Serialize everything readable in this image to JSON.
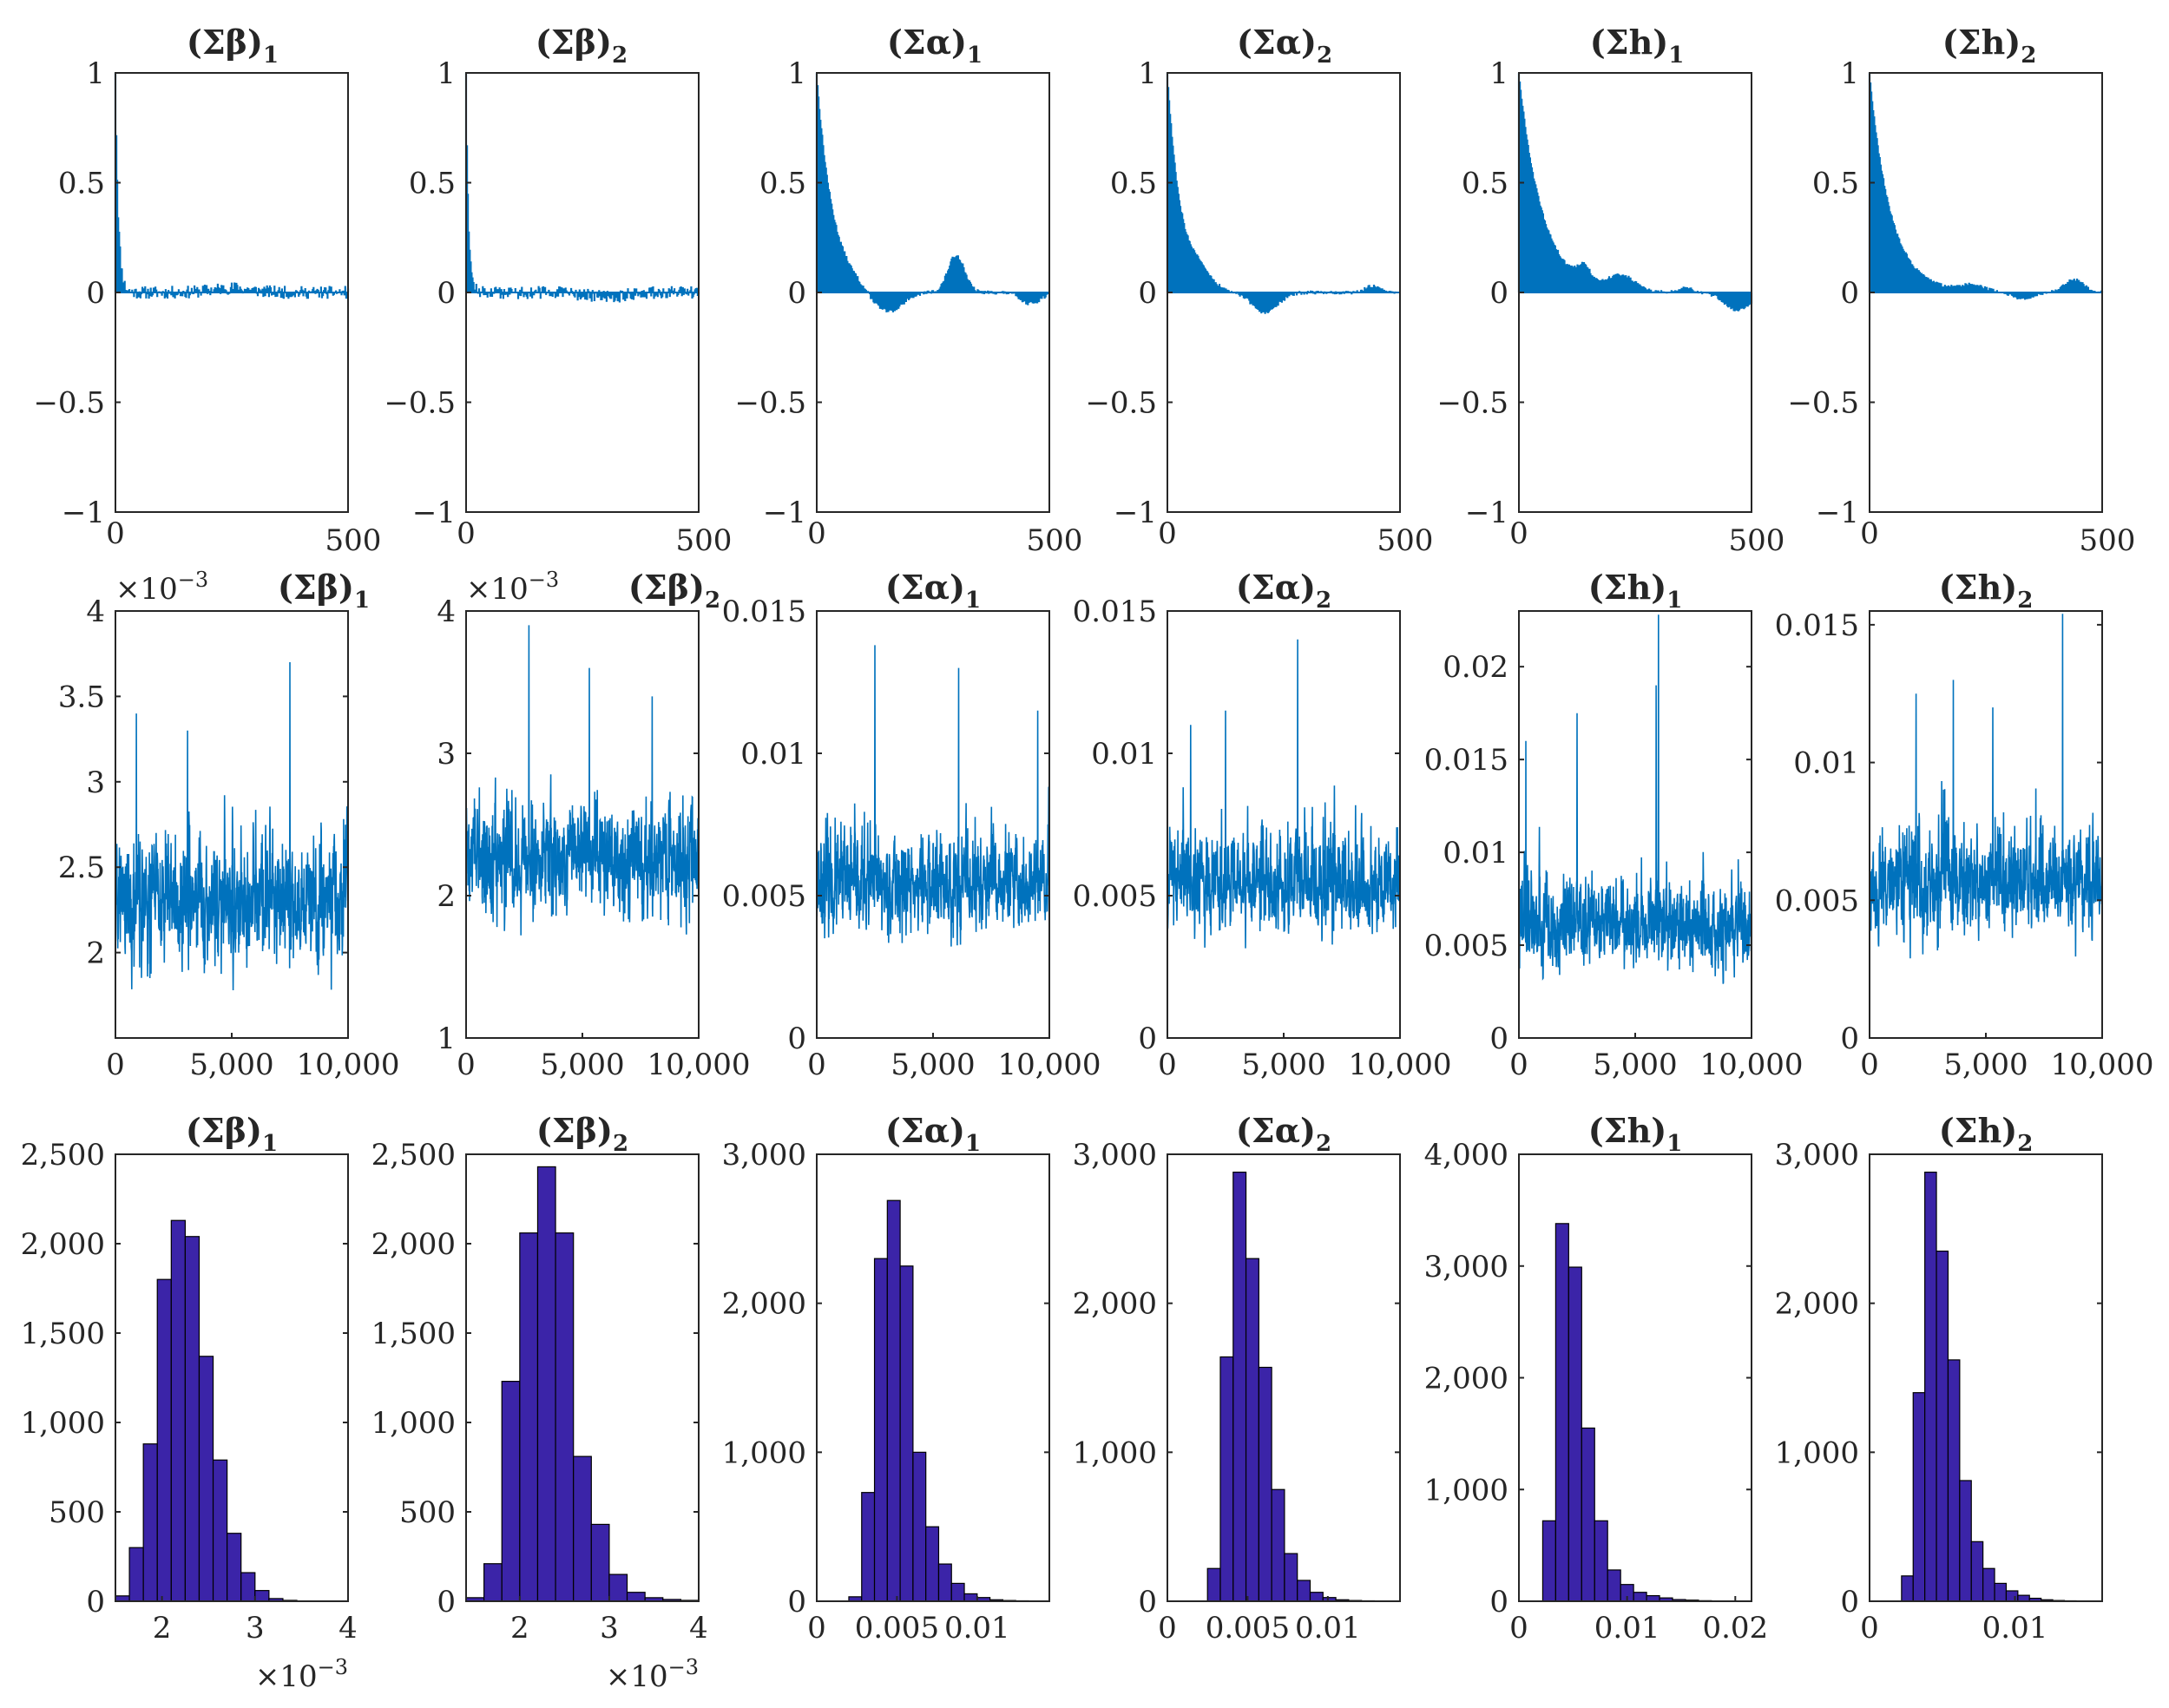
{
  "figure": {
    "rows": [
      "autocorrelation",
      "trace",
      "histogram"
    ],
    "colors": {
      "series": "#0072BD",
      "hist_fill": "#3B24A8",
      "hist_edge": "#000000",
      "axis": "#262626"
    }
  },
  "chart_data": [
    {
      "type": "bar",
      "row": "autocorrelation",
      "title": "(Σβ)",
      "subscript": "1",
      "xlim": [
        0,
        500
      ],
      "ylim": [
        -1,
        1
      ],
      "xticks": [
        "0",
        "500"
      ],
      "yticks": [
        "−1",
        "−0.5",
        "0",
        "0.5",
        "1"
      ],
      "decay": 6,
      "noise_amp": 0.03,
      "bumps": [
        [
          250,
          0.02,
          60
        ]
      ],
      "seed": 11
    },
    {
      "type": "bar",
      "row": "autocorrelation",
      "title": "(Σβ)",
      "subscript": "2",
      "xlim": [
        0,
        500
      ],
      "ylim": [
        -1,
        1
      ],
      "xticks": [
        "0",
        "500"
      ],
      "yticks": [
        "−1",
        "−0.5",
        "0",
        "0.5",
        "1"
      ],
      "decay": 5,
      "noise_amp": 0.03,
      "bumps": [
        [
          300,
          -0.02,
          60
        ]
      ],
      "seed": 12
    },
    {
      "type": "bar",
      "row": "autocorrelation",
      "title": "(Σα)",
      "subscript": "1",
      "xlim": [
        0,
        500
      ],
      "ylim": [
        -1,
        1
      ],
      "xticks": [
        "0",
        "500"
      ],
      "yticks": [
        "−1",
        "−0.5",
        "0",
        "0.5",
        "1"
      ],
      "decay": 35,
      "noise_amp": 0.01,
      "bumps": [
        [
          150,
          -0.1,
          45
        ],
        [
          300,
          0.17,
          25
        ],
        [
          460,
          -0.05,
          30
        ]
      ],
      "seed": 13
    },
    {
      "type": "bar",
      "row": "autocorrelation",
      "title": "(Σα)",
      "subscript": "2",
      "xlim": [
        0,
        500
      ],
      "ylim": [
        -1,
        1
      ],
      "xticks": [
        "0",
        "500"
      ],
      "yticks": [
        "−1",
        "−0.5",
        "0",
        "0.5",
        "1"
      ],
      "decay": 30,
      "noise_amp": 0.01,
      "bumps": [
        [
          70,
          0.05,
          30
        ],
        [
          210,
          -0.09,
          40
        ],
        [
          440,
          0.03,
          20
        ]
      ],
      "seed": 14
    },
    {
      "type": "bar",
      "row": "autocorrelation",
      "title": "(Σh)",
      "subscript": "1",
      "xlim": [
        0,
        500
      ],
      "ylim": [
        -1,
        1
      ],
      "xticks": [
        "0",
        "500"
      ],
      "yticks": [
        "−1",
        "−0.5",
        "0",
        "0.5",
        "1"
      ],
      "decay": 50,
      "noise_amp": 0.008,
      "bumps": [
        [
          140,
          0.07,
          20
        ],
        [
          220,
          0.07,
          40
        ],
        [
          360,
          0.02,
          20
        ],
        [
          470,
          -0.08,
          40
        ]
      ],
      "seed": 15
    },
    {
      "type": "bar",
      "row": "autocorrelation",
      "title": "(Σh)",
      "subscript": "2",
      "xlim": [
        0,
        500
      ],
      "ylim": [
        -1,
        1
      ],
      "xticks": [
        "0",
        "500"
      ],
      "yticks": [
        "−1",
        "−0.5",
        "0",
        "0.5",
        "1"
      ],
      "decay": 45,
      "noise_amp": 0.008,
      "bumps": [
        [
          220,
          0.03,
          40
        ],
        [
          330,
          -0.03,
          30
        ],
        [
          440,
          0.06,
          30
        ]
      ],
      "seed": 16
    },
    {
      "type": "line",
      "row": "trace",
      "title": "(Σβ)",
      "subscript": "1",
      "multiplier": "×10",
      "multiplier_exp": "−3",
      "xlim": [
        0,
        10000
      ],
      "ylim": [
        1.5,
        4
      ],
      "xticks": [
        "0",
        "5,000",
        "10,000"
      ],
      "xtickvals": [
        0,
        5000,
        10000
      ],
      "yticks": [
        "2",
        "2.5",
        "3",
        "3.5",
        "4"
      ],
      "ytickvals": [
        2,
        2.5,
        3,
        3.5,
        4
      ],
      "mean": 2.3,
      "sd": 0.25,
      "skew": 0.1,
      "spikes": [
        [
          7500,
          3.7
        ],
        [
          900,
          3.4
        ],
        [
          3100,
          3.3
        ]
      ],
      "seed": 21
    },
    {
      "type": "line",
      "row": "trace",
      "title": "(Σβ)",
      "subscript": "2",
      "multiplier": "×10",
      "multiplier_exp": "−3",
      "xlim": [
        0,
        10000
      ],
      "ylim": [
        1,
        4
      ],
      "xticks": [
        "0",
        "5,000",
        "10,000"
      ],
      "xtickvals": [
        0,
        5000,
        10000
      ],
      "yticks": [
        "1",
        "2",
        "3",
        "4"
      ],
      "ytickvals": [
        1,
        2,
        3,
        4
      ],
      "mean": 2.25,
      "sd": 0.25,
      "skew": 0.1,
      "spikes": [
        [
          2700,
          3.9
        ],
        [
          5300,
          3.6
        ],
        [
          8000,
          3.4
        ]
      ],
      "seed": 22
    },
    {
      "type": "line",
      "row": "trace",
      "title": "(Σα)",
      "subscript": "1",
      "xlim": [
        0,
        10000
      ],
      "ylim": [
        0,
        0.015
      ],
      "xticks": [
        "0",
        "5,000",
        "10,000"
      ],
      "xtickvals": [
        0,
        5000,
        10000
      ],
      "yticks": [
        "0",
        "0.005",
        "0.01",
        "0.015"
      ],
      "ytickvals": [
        0,
        0.005,
        0.01,
        0.015
      ],
      "mean": 0.0052,
      "sd": 0.001,
      "skew": 0.5,
      "spikes": [
        [
          2500,
          0.0138
        ],
        [
          6100,
          0.013
        ],
        [
          9500,
          0.0115
        ]
      ],
      "seed": 23
    },
    {
      "type": "line",
      "row": "trace",
      "title": "(Σα)",
      "subscript": "2",
      "xlim": [
        0,
        10000
      ],
      "ylim": [
        0,
        0.015
      ],
      "xticks": [
        "0",
        "5,000",
        "10,000"
      ],
      "xtickvals": [
        0,
        5000,
        10000
      ],
      "yticks": [
        "0",
        "0.005",
        "0.01",
        "0.015"
      ],
      "ytickvals": [
        0,
        0.005,
        0.01,
        0.015
      ],
      "mean": 0.0052,
      "sd": 0.001,
      "skew": 0.5,
      "spikes": [
        [
          5600,
          0.014
        ],
        [
          2500,
          0.0115
        ],
        [
          1000,
          0.011
        ]
      ],
      "seed": 24
    },
    {
      "type": "line",
      "row": "trace",
      "title": "(Σh)",
      "subscript": "1",
      "xlim": [
        0,
        10000
      ],
      "ylim": [
        0,
        0.023
      ],
      "xticks": [
        "0",
        "5,000",
        "10,000"
      ],
      "xtickvals": [
        0,
        5000,
        10000
      ],
      "yticks": [
        "0",
        "0.005",
        "0.01",
        "0.015",
        "0.02"
      ],
      "ytickvals": [
        0,
        0.005,
        0.01,
        0.015,
        0.02
      ],
      "mean": 0.0058,
      "sd": 0.0013,
      "skew": 0.6,
      "spikes": [
        [
          6000,
          0.0228
        ],
        [
          2500,
          0.0175
        ],
        [
          300,
          0.016
        ],
        [
          5900,
          0.019
        ]
      ],
      "seed": 25
    },
    {
      "type": "line",
      "row": "trace",
      "title": "(Σh)",
      "subscript": "2",
      "xlim": [
        0,
        10000
      ],
      "ylim": [
        0,
        0.0155
      ],
      "xticks": [
        "0",
        "5,000",
        "10,000"
      ],
      "xtickvals": [
        0,
        5000,
        10000
      ],
      "yticks": [
        "0",
        "0.005",
        "0.01",
        "0.015"
      ],
      "ytickvals": [
        0,
        0.005,
        0.01,
        0.015
      ],
      "mean": 0.0055,
      "sd": 0.0011,
      "skew": 0.5,
      "spikes": [
        [
          8300,
          0.0154
        ],
        [
          3600,
          0.013
        ],
        [
          2000,
          0.0125
        ],
        [
          5300,
          0.012
        ]
      ],
      "seed": 26
    },
    {
      "type": "bar",
      "row": "histogram",
      "title": "(Σβ)",
      "subscript": "1",
      "multiplier": "×10",
      "multiplier_exp": "−3",
      "xlim": [
        1.5,
        4
      ],
      "ylim": [
        0,
        2500
      ],
      "xticks": [
        "2",
        "3",
        "4"
      ],
      "xtickvals": [
        2,
        3,
        4
      ],
      "yticks": [
        "0",
        "500",
        "1,000",
        "1,500",
        "2,000",
        "2,500"
      ],
      "ytickvals": [
        0,
        500,
        1000,
        1500,
        2000,
        2500
      ],
      "edges": [
        1.5,
        1.65,
        1.8,
        1.95,
        2.1,
        2.25,
        2.4,
        2.55,
        2.7,
        2.85,
        3.0,
        3.15,
        3.3,
        3.45,
        3.6,
        3.75
      ],
      "counts": [
        30,
        300,
        880,
        1800,
        2130,
        2040,
        1370,
        790,
        380,
        160,
        60,
        15,
        5,
        2,
        1
      ]
    },
    {
      "type": "bar",
      "row": "histogram",
      "title": "(Σβ)",
      "subscript": "2",
      "multiplier": "×10",
      "multiplier_exp": "−3",
      "xlim": [
        1.4,
        4
      ],
      "ylim": [
        0,
        2500
      ],
      "xticks": [
        "2",
        "3",
        "4"
      ],
      "xtickvals": [
        2,
        3,
        4
      ],
      "yticks": [
        "0",
        "500",
        "1,000",
        "1,500",
        "2,000",
        "2,500"
      ],
      "ytickvals": [
        0,
        500,
        1000,
        1500,
        2000,
        2500
      ],
      "edges": [
        1.4,
        1.6,
        1.8,
        2.0,
        2.2,
        2.4,
        2.6,
        2.8,
        3.0,
        3.2,
        3.4,
        3.6,
        3.8,
        4.0
      ],
      "counts": [
        20,
        210,
        1230,
        2060,
        2430,
        2060,
        810,
        430,
        150,
        50,
        20,
        10,
        5
      ]
    },
    {
      "type": "bar",
      "row": "histogram",
      "title": "(Σα)",
      "subscript": "1",
      "xlim": [
        0,
        0.0145
      ],
      "ylim": [
        0,
        3000
      ],
      "xticks": [
        "0",
        "0.005",
        "0.01"
      ],
      "xtickvals": [
        0,
        0.005,
        0.01
      ],
      "yticks": [
        "0",
        "1,000",
        "2,000",
        "3,000"
      ],
      "ytickvals": [
        0,
        1000,
        2000,
        3000
      ],
      "edges": [
        0.002,
        0.0028,
        0.0036,
        0.0044,
        0.0052,
        0.006,
        0.0068,
        0.0076,
        0.0084,
        0.0092,
        0.01,
        0.0108,
        0.0116,
        0.0124,
        0.0132
      ],
      "counts": [
        30,
        730,
        2300,
        2690,
        2250,
        1000,
        500,
        250,
        120,
        50,
        25,
        10,
        5,
        3
      ]
    },
    {
      "type": "bar",
      "row": "histogram",
      "title": "(Σα)",
      "subscript": "2",
      "xlim": [
        0,
        0.0145
      ],
      "ylim": [
        0,
        3000
      ],
      "xticks": [
        "0",
        "0.005",
        "0.01"
      ],
      "xtickvals": [
        0,
        0.005,
        0.01
      ],
      "yticks": [
        "0",
        "1,000",
        "2,000",
        "3,000"
      ],
      "ytickvals": [
        0,
        1000,
        2000,
        3000
      ],
      "edges": [
        0.0025,
        0.0033,
        0.0041,
        0.0049,
        0.0057,
        0.0065,
        0.0073,
        0.0081,
        0.0089,
        0.0097,
        0.0105,
        0.0113,
        0.0121,
        0.0129,
        0.0137
      ],
      "counts": [
        220,
        1640,
        2880,
        2300,
        1570,
        750,
        320,
        140,
        60,
        25,
        10,
        5,
        3,
        2
      ]
    },
    {
      "type": "bar",
      "row": "histogram",
      "title": "(Σh)",
      "subscript": "1",
      "xlim": [
        0,
        0.0215
      ],
      "ylim": [
        0,
        4000
      ],
      "xticks": [
        "0",
        "0.01",
        "0.02"
      ],
      "xtickvals": [
        0,
        0.01,
        0.02
      ],
      "yticks": [
        "0",
        "1,000",
        "2,000",
        "3,000",
        "4,000"
      ],
      "ytickvals": [
        0,
        1000,
        2000,
        3000,
        4000
      ],
      "edges": [
        0.0022,
        0.0034,
        0.0046,
        0.0058,
        0.007,
        0.0082,
        0.0094,
        0.0106,
        0.0118,
        0.013,
        0.0142,
        0.0154,
        0.0166,
        0.0178,
        0.019,
        0.0202,
        0.0214
      ],
      "counts": [
        720,
        3380,
        2990,
        1550,
        720,
        280,
        150,
        80,
        50,
        30,
        15,
        10,
        5,
        3,
        2,
        1
      ]
    },
    {
      "type": "bar",
      "row": "histogram",
      "title": "(Σh)",
      "subscript": "2",
      "xlim": [
        0,
        0.016
      ],
      "ylim": [
        0,
        3000
      ],
      "xticks": [
        "0",
        "0.01"
      ],
      "xtickvals": [
        0,
        0.01
      ],
      "yticks": [
        "0",
        "1,000",
        "2,000",
        "3,000"
      ],
      "ytickvals": [
        0,
        1000,
        2000,
        3000
      ],
      "edges": [
        0.0022,
        0.003,
        0.0038,
        0.0046,
        0.0054,
        0.0062,
        0.007,
        0.0078,
        0.0086,
        0.0094,
        0.0102,
        0.011,
        0.0118,
        0.0126,
        0.0134,
        0.0142,
        0.015
      ],
      "counts": [
        170,
        1400,
        2880,
        2350,
        1620,
        810,
        400,
        220,
        120,
        70,
        40,
        20,
        10,
        5,
        3,
        2
      ]
    }
  ]
}
